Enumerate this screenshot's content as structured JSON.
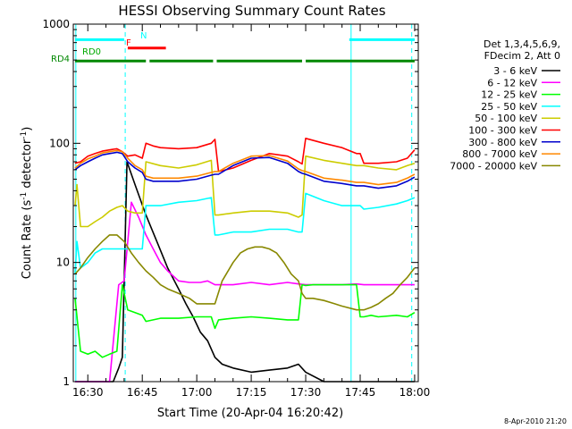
{
  "chart_data": {
    "type": "line",
    "title": "HESSI Observing Summary Count Rates",
    "xlabel": "Start Time (20-Apr-04 16:20:42)",
    "ylabel_main": "Count Rate (s",
    "ylabel_sup1": "-1",
    "ylabel_mid": " detector",
    "ylabel_sup2": "-1",
    "ylabel_end": ")",
    "x_unit": "minutes since 16:00",
    "xlim": [
      26,
      121
    ],
    "yscale": "log",
    "ylim": [
      1,
      1000
    ],
    "x_ticks": [
      {
        "value": 30,
        "label": "16:30"
      },
      {
        "value": 45,
        "label": "16:45"
      },
      {
        "value": 60,
        "label": "17:00"
      },
      {
        "value": 75,
        "label": "17:15"
      },
      {
        "value": 90,
        "label": "17:30"
      },
      {
        "value": 105,
        "label": "17:45"
      },
      {
        "value": 120,
        "label": "18:00"
      }
    ],
    "y_ticks": [
      {
        "value": 1,
        "label": "1"
      },
      {
        "value": 10,
        "label": "10"
      },
      {
        "value": 100,
        "label": "100"
      },
      {
        "value": 1000,
        "label": "1000"
      }
    ],
    "legend_header": [
      "Det 1,3,4,5,6,9,",
      "FDecim 2, Att 0"
    ],
    "legend_placement": "right",
    "series": [
      {
        "name": "3 - 6 keV",
        "color": "#000000",
        "x": [
          26.5,
          30,
          34,
          37,
          38.5,
          39.5,
          40.8,
          43,
          46,
          49,
          52,
          55,
          57,
          59,
          61,
          63,
          65,
          67,
          70,
          75,
          80,
          85,
          88,
          90,
          95,
          100,
          104,
          106,
          110,
          115,
          118,
          120
        ],
        "y": [
          1,
          1,
          1,
          1,
          1.3,
          1.6,
          70,
          45,
          25,
          15,
          9,
          6,
          4.5,
          3.5,
          2.6,
          2.2,
          1.6,
          1.4,
          1.3,
          1.2,
          1.25,
          1.3,
          1.4,
          1.2,
          1,
          1,
          1,
          1,
          1,
          1,
          1,
          1
        ]
      },
      {
        "name": "6 - 12 keV",
        "color": "#ff00ff",
        "x": [
          26.5,
          30,
          33,
          36,
          38.5,
          40,
          42,
          44,
          46,
          48,
          50,
          52,
          55,
          58,
          61,
          63,
          65,
          67,
          70,
          75,
          80,
          85,
          88,
          90,
          95,
          100,
          104,
          106,
          110,
          115,
          118,
          120
        ],
        "y": [
          1,
          1,
          1,
          1,
          6.5,
          7,
          32,
          24,
          17,
          13,
          10,
          8.5,
          7,
          6.8,
          6.8,
          7,
          6.5,
          6.5,
          6.5,
          6.8,
          6.5,
          6.8,
          6.6,
          6.5,
          6.5,
          6.5,
          6.6,
          6.5,
          6.5,
          6.5,
          6.5,
          6.5
        ]
      },
      {
        "name": "12 - 25 keV",
        "color": "#00ff00",
        "x": [
          26.5,
          28,
          30,
          32,
          34,
          36,
          38,
          39.5,
          41,
          43,
          45,
          46,
          50,
          55,
          60,
          64,
          65,
          66,
          70,
          75,
          80,
          85,
          88,
          89,
          90,
          92,
          95,
          100,
          104,
          105,
          106,
          108,
          110,
          115,
          118,
          120
        ],
        "y": [
          5,
          1.8,
          1.7,
          1.8,
          1.6,
          1.7,
          1.8,
          6.5,
          4,
          3.8,
          3.6,
          3.2,
          3.4,
          3.4,
          3.5,
          3.5,
          2.8,
          3.3,
          3.4,
          3.5,
          3.4,
          3.3,
          3.3,
          6.5,
          6.4,
          6.5,
          6.5,
          6.5,
          6.5,
          3.5,
          3.5,
          3.6,
          3.5,
          3.6,
          3.5,
          3.8
        ]
      },
      {
        "name": "25 - 50 keV",
        "color": "#00ffff",
        "x": [
          26.5,
          27,
          28,
          30,
          32,
          34,
          36,
          38,
          39.5,
          41,
          43,
          45,
          46,
          50,
          55,
          60,
          64,
          65,
          66,
          70,
          75,
          80,
          85,
          88,
          89,
          90,
          95,
          100,
          104,
          105,
          106,
          110,
          115,
          118,
          120
        ],
        "y": [
          8,
          15,
          9,
          10,
          12,
          13,
          13,
          13,
          13,
          13,
          13,
          13,
          30,
          30,
          32,
          33,
          35,
          17,
          17,
          18,
          18,
          19,
          19,
          18,
          18,
          38,
          33,
          30,
          30,
          30,
          28,
          29,
          31,
          33,
          35
        ]
      },
      {
        "name": "50 - 100 keV",
        "color": "#cccc00",
        "x": [
          26.5,
          27,
          28,
          29,
          30,
          32,
          34,
          36,
          38,
          39.5,
          41,
          43,
          45,
          46,
          50,
          55,
          60,
          64,
          65,
          66,
          70,
          75,
          80,
          85,
          88,
          89,
          90,
          95,
          100,
          104,
          106,
          110,
          115,
          118,
          120
        ],
        "y": [
          30,
          45,
          20,
          20,
          20,
          22,
          24,
          27,
          29,
          30,
          27,
          26,
          26,
          70,
          65,
          62,
          66,
          72,
          25,
          25,
          26,
          27,
          27,
          26,
          24,
          25,
          78,
          72,
          68,
          65,
          65,
          62,
          60,
          65,
          68
        ]
      },
      {
        "name": "100 - 300 keV",
        "color": "#ff0000",
        "x": [
          26.5,
          28,
          30,
          32,
          34,
          36,
          38,
          39.5,
          41,
          43,
          45,
          46,
          48,
          50,
          55,
          60,
          64,
          65,
          66,
          70,
          75,
          80,
          85,
          88,
          89,
          90,
          95,
          100,
          104,
          105,
          106,
          110,
          115,
          118,
          120
        ],
        "y": [
          68,
          70,
          78,
          82,
          86,
          88,
          90,
          85,
          78,
          80,
          75,
          100,
          95,
          92,
          90,
          92,
          100,
          108,
          58,
          62,
          72,
          82,
          78,
          70,
          67,
          110,
          100,
          92,
          82,
          82,
          68,
          68,
          70,
          75,
          88
        ]
      },
      {
        "name": "300 - 800 keV",
        "color": "#0000cc",
        "x": [
          26.5,
          28,
          30,
          32,
          34,
          36,
          38,
          39.5,
          41,
          43,
          45,
          46,
          48,
          50,
          55,
          60,
          64,
          65,
          66,
          70,
          75,
          80,
          85,
          88,
          89,
          90,
          95,
          100,
          104,
          106,
          110,
          115,
          118,
          120
        ],
        "y": [
          60,
          65,
          70,
          75,
          80,
          82,
          84,
          82,
          70,
          62,
          57,
          50,
          48,
          48,
          48,
          50,
          54,
          55,
          55,
          65,
          75,
          76,
          68,
          58,
          56,
          55,
          48,
          46,
          44,
          44,
          42,
          44,
          48,
          52
        ]
      },
      {
        "name": "800 - 7000 keV",
        "color": "#ff8800",
        "x": [
          26.5,
          28,
          30,
          32,
          34,
          36,
          38,
          39.5,
          41,
          43,
          45,
          46,
          48,
          50,
          55,
          60,
          64,
          65,
          66,
          70,
          75,
          80,
          85,
          88,
          89,
          90,
          95,
          100,
          104,
          106,
          110,
          115,
          118,
          120
        ],
        "y": [
          62,
          68,
          74,
          78,
          83,
          85,
          87,
          85,
          75,
          65,
          60,
          53,
          51,
          51,
          51,
          53,
          57,
          58,
          58,
          68,
          78,
          79,
          71,
          61,
          59,
          58,
          51,
          49,
          47,
          47,
          45,
          47,
          51,
          55
        ]
      },
      {
        "name": "7000 - 20000 keV",
        "color": "#888800",
        "x": [
          26.5,
          28,
          30,
          32,
          34,
          36,
          38,
          40,
          42,
          44,
          46,
          48,
          50,
          52,
          55,
          58,
          60,
          63,
          65,
          67,
          70,
          72,
          74,
          76,
          78,
          80,
          82,
          84,
          86,
          88,
          89,
          90,
          92,
          95,
          98,
          100,
          104,
          106,
          108,
          110,
          112,
          114,
          116,
          118,
          120
        ],
        "y": [
          8,
          9,
          11,
          13,
          15,
          17,
          17,
          15,
          12,
          10,
          8.5,
          7.5,
          6.5,
          6,
          5.5,
          5,
          4.5,
          4.5,
          4.5,
          7,
          10,
          12,
          13,
          13.5,
          13.5,
          13,
          12,
          10,
          8,
          7,
          5.5,
          5,
          5,
          4.8,
          4.5,
          4.3,
          4,
          4,
          4.2,
          4.5,
          5,
          5.5,
          6.5,
          7.5,
          9
        ]
      }
    ],
    "state_bars": [
      {
        "name": "N",
        "color": "#00ffff",
        "level": 740,
        "segments": [
          [
            26.5,
            40
          ],
          [
            102,
            120
          ]
        ]
      },
      {
        "name": "F",
        "color": "#ff0000",
        "level": 630,
        "segments": [
          [
            41,
            51.5
          ]
        ]
      },
      {
        "name": "RD0",
        "color": "#00aa00",
        "level": 580,
        "segments": []
      },
      {
        "name": "RD4",
        "color": "#008800",
        "level": 490,
        "segments": [
          [
            26.5,
            46
          ],
          [
            47,
            64.5
          ],
          [
            65.5,
            89
          ],
          [
            90,
            120
          ]
        ]
      }
    ],
    "vertical_lines": [
      {
        "x": 26.7,
        "style": "solid",
        "color": "#00ffff"
      },
      {
        "x": 40.3,
        "style": "dashed",
        "color": "#00ffff"
      },
      {
        "x": 102.5,
        "style": "solid",
        "color": "#00ffff"
      },
      {
        "x": 119.2,
        "style": "dashed",
        "color": "#00ffff"
      }
    ],
    "grid": false
  },
  "footer_date": "8-Apr-2010 21:20"
}
